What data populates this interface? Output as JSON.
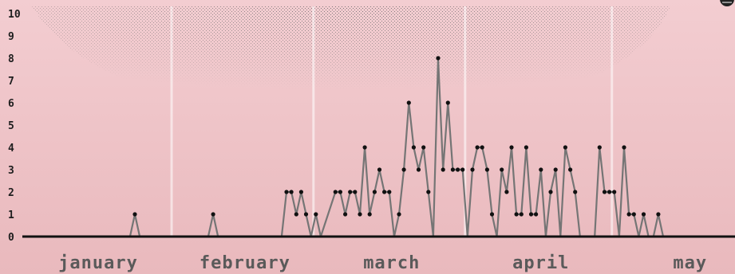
{
  "chart_data": {
    "type": "line",
    "title": "",
    "xlabel": "",
    "ylabel": "",
    "ylim": [
      0,
      10
    ],
    "y_ticks": [
      0,
      1,
      2,
      3,
      4,
      5,
      6,
      7,
      8,
      9,
      10
    ],
    "grid": false,
    "months": [
      "january",
      "february",
      "march",
      "april",
      "may"
    ],
    "colors": {
      "line": "#757575",
      "points": "#111111",
      "axis": "#111111",
      "background_top": "#f3cdd1",
      "background_bottom": "#e9b9bd",
      "stipple": "#6e6e6e"
    },
    "series": [
      {
        "points": [
          [
            "2020-01-23",
            0
          ],
          [
            "2020-01-24",
            1
          ],
          [
            "2020-01-25",
            0
          ],
          [
            "2020-02-08",
            0
          ],
          [
            "2020-02-09",
            1
          ],
          [
            "2020-02-10",
            0
          ],
          [
            "2020-02-23",
            0
          ],
          [
            "2020-02-24",
            2
          ],
          [
            "2020-02-25",
            2
          ],
          [
            "2020-02-26",
            1
          ],
          [
            "2020-02-27",
            2
          ],
          [
            "2020-02-28",
            1
          ],
          [
            "2020-02-29",
            0
          ],
          [
            "2020-03-01",
            1
          ],
          [
            "2020-03-02",
            0
          ],
          [
            "2020-03-05",
            2
          ],
          [
            "2020-03-06",
            2
          ],
          [
            "2020-03-07",
            1
          ],
          [
            "2020-03-08",
            2
          ],
          [
            "2020-03-09",
            2
          ],
          [
            "2020-03-10",
            1
          ],
          [
            "2020-03-11",
            4
          ],
          [
            "2020-03-12",
            1
          ],
          [
            "2020-03-13",
            2
          ],
          [
            "2020-03-14",
            3
          ],
          [
            "2020-03-15",
            2
          ],
          [
            "2020-03-16",
            2
          ],
          [
            "2020-03-17",
            0
          ],
          [
            "2020-03-18",
            1
          ],
          [
            "2020-03-19",
            3
          ],
          [
            "2020-03-20",
            6
          ],
          [
            "2020-03-21",
            4
          ],
          [
            "2020-03-22",
            3
          ],
          [
            "2020-03-23",
            4
          ],
          [
            "2020-03-24",
            2
          ],
          [
            "2020-03-25",
            0
          ],
          [
            "2020-03-26",
            8
          ],
          [
            "2020-03-27",
            3
          ],
          [
            "2020-03-28",
            6
          ],
          [
            "2020-03-29",
            3
          ],
          [
            "2020-03-30",
            3
          ],
          [
            "2020-03-31",
            3
          ],
          [
            "2020-04-01",
            0
          ],
          [
            "2020-04-02",
            3
          ],
          [
            "2020-04-03",
            4
          ],
          [
            "2020-04-04",
            4
          ],
          [
            "2020-04-05",
            3
          ],
          [
            "2020-04-06",
            1
          ],
          [
            "2020-04-07",
            0
          ],
          [
            "2020-04-08",
            3
          ],
          [
            "2020-04-09",
            2
          ],
          [
            "2020-04-10",
            4
          ],
          [
            "2020-04-11",
            1
          ],
          [
            "2020-04-12",
            1
          ],
          [
            "2020-04-13",
            4
          ],
          [
            "2020-04-14",
            1
          ],
          [
            "2020-04-15",
            1
          ],
          [
            "2020-04-16",
            3
          ],
          [
            "2020-04-17",
            0
          ],
          [
            "2020-04-18",
            2
          ],
          [
            "2020-04-19",
            3
          ],
          [
            "2020-04-20",
            0
          ],
          [
            "2020-04-21",
            4
          ],
          [
            "2020-04-22",
            3
          ],
          [
            "2020-04-23",
            2
          ],
          [
            "2020-04-24",
            0
          ],
          [
            "2020-04-27",
            0
          ],
          [
            "2020-04-28",
            4
          ],
          [
            "2020-04-29",
            2
          ],
          [
            "2020-04-30",
            2
          ],
          [
            "2020-05-01",
            2
          ],
          [
            "2020-05-02",
            0
          ],
          [
            "2020-05-03",
            4
          ],
          [
            "2020-05-04",
            1
          ],
          [
            "2020-05-05",
            1
          ],
          [
            "2020-05-06",
            0
          ],
          [
            "2020-05-07",
            1
          ],
          [
            "2020-05-08",
            0
          ],
          [
            "2020-05-09",
            0
          ],
          [
            "2020-05-10",
            1
          ],
          [
            "2020-05-11",
            0
          ]
        ]
      }
    ]
  }
}
